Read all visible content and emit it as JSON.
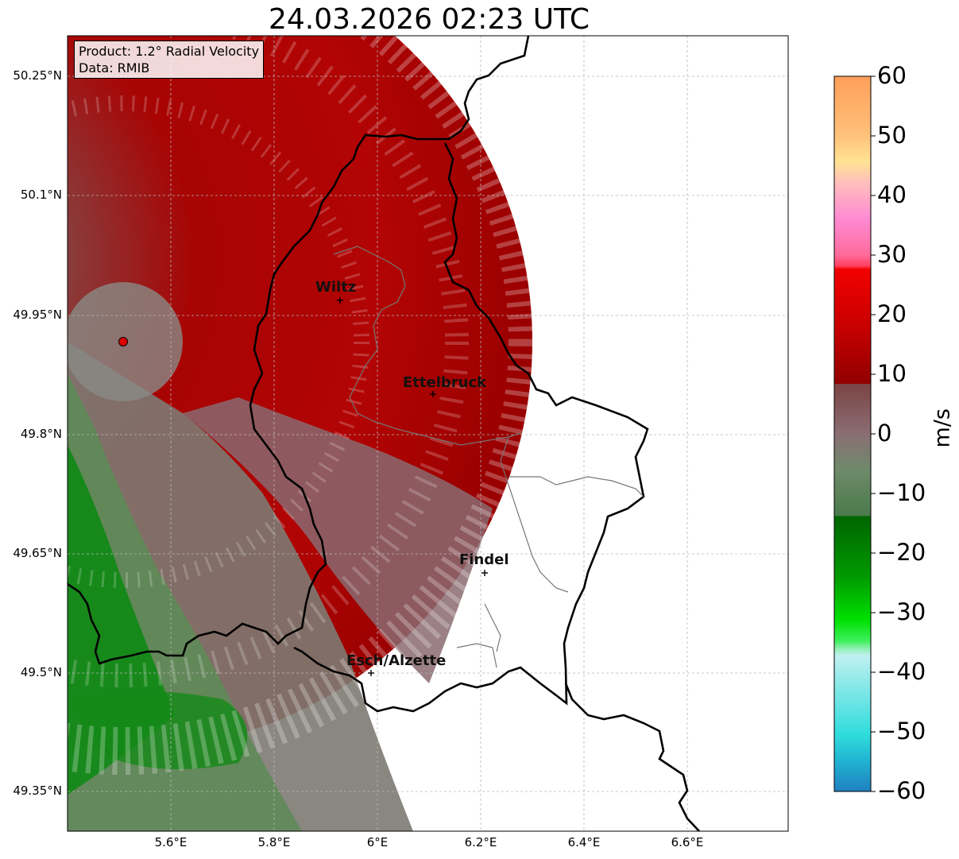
{
  "title": "24.03.2026 02:23 UTC",
  "info": {
    "product": "Product: 1.2° Radial Velocity",
    "data": "Data: RMIB"
  },
  "axes": {
    "lat_ticks": [
      "50.25°N",
      "50.1°N",
      "49.95°N",
      "49.8°N",
      "49.65°N",
      "49.5°N",
      "49.35°N"
    ],
    "lon_ticks": [
      "5.6°E",
      "5.8°E",
      "6°E",
      "6.2°E",
      "6.4°E",
      "6.6°E"
    ]
  },
  "cities": {
    "wiltz": "Wiltz",
    "ettelbruck": "Ettelbruck",
    "findel": "Findel",
    "esch": "Esch/Alzette"
  },
  "colorbar": {
    "unit": "m/s",
    "ticks": [
      "60",
      "50",
      "40",
      "30",
      "20",
      "10",
      "0",
      "−10",
      "−20",
      "−30",
      "−40",
      "−50",
      "−60"
    ],
    "min": -60,
    "max": 60
  },
  "radar": {
    "lat": 49.92,
    "lon": 5.505,
    "marker_color": "#e00000"
  },
  "colors": {
    "receding_dark": "#7a0000",
    "receding": "#b00000",
    "neutral": "#7f7470",
    "approaching": "#0a8a0a",
    "border": "#000000"
  }
}
